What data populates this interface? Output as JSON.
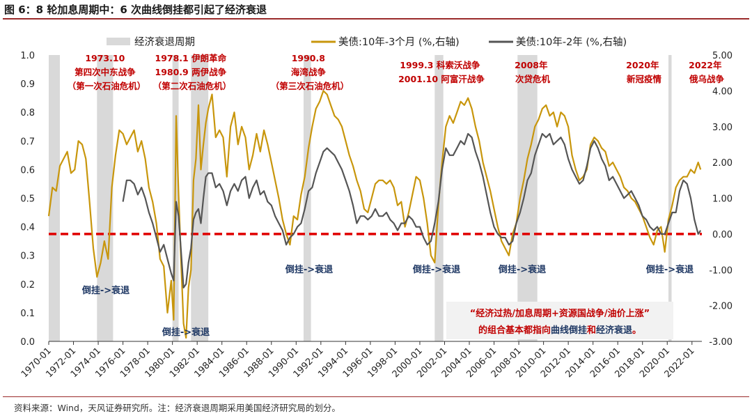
{
  "title": "图 6：8 轮加息周期中：6 次曲线倒挂都引起了经济衰退",
  "footer": "资料来源：Wind，天风证券研究所。注：经济衰退周期采用美国经济研究局的划分。",
  "colors": {
    "gold": "#c8960c",
    "gray": "#555555",
    "recession": "#d9d9d9",
    "red": "#e00000",
    "annot": "#c00000",
    "navy": "#1f3864"
  },
  "chart_data": {
    "type": "line",
    "title": "8 轮加息周期中：6 次曲线倒挂都引起了经济衰退",
    "x_range": [
      1970.0,
      2022.8
    ],
    "left_axis": {
      "ylim": [
        0.0,
        1.0
      ],
      "ticks": [
        "0.0",
        "0.1",
        "0.2",
        "0.3",
        "0.4",
        "0.5",
        "0.6",
        "0.7",
        "0.8",
        "0.9",
        "1.0"
      ]
    },
    "right_axis": {
      "ylim": [
        -3.0,
        5.0
      ],
      "ticks": [
        "-3.00",
        "-2.00",
        "-1.00",
        "0.00",
        "1.00",
        "2.00",
        "3.00",
        "4.00",
        "5.00"
      ]
    },
    "x_ticks": [
      "1970-01",
      "1972-01",
      "1974-01",
      "1976-01",
      "1978-01",
      "1980-01",
      "1982-01",
      "1984-01",
      "1986-01",
      "1988-01",
      "1990-01",
      "1992-01",
      "1994-01",
      "1996-01",
      "1998-01",
      "2000-01",
      "2002-01",
      "2004-01",
      "2006-01",
      "2008-01",
      "2010-01",
      "2012-01",
      "2014-01",
      "2016-01",
      "2018-01",
      "2020-01",
      "2022-01"
    ],
    "legend": [
      "经济衰退周期",
      "美债:10年-3个月 (%,右轴)",
      "美债:10年-2年 (%,右轴)"
    ],
    "recessions": [
      [
        1970.0,
        1970.9
      ],
      [
        1973.9,
        1975.2
      ],
      [
        1980.0,
        1980.5
      ],
      [
        1981.5,
        1982.9
      ],
      [
        1990.6,
        1991.2
      ],
      [
        2001.2,
        2001.9
      ],
      [
        2007.9,
        2009.5
      ],
      [
        2020.1,
        2020.35
      ]
    ],
    "reference_line": {
      "axis": "right",
      "value": 0.0,
      "style": "dashed"
    },
    "series": [
      {
        "name": "美债:10年-3个月 (%,右轴)",
        "axis": "right",
        "x": [
          1970.0,
          1970.3,
          1970.6,
          1970.9,
          1971.2,
          1971.5,
          1971.8,
          1972.1,
          1972.4,
          1972.7,
          1973.0,
          1973.3,
          1973.6,
          1973.9,
          1974.2,
          1974.5,
          1974.8,
          1975.1,
          1975.4,
          1975.7,
          1976.0,
          1976.3,
          1976.6,
          1976.9,
          1977.2,
          1977.5,
          1977.8,
          1978.1,
          1978.4,
          1978.7,
          1979.0,
          1979.3,
          1979.6,
          1979.9,
          1980.1,
          1980.3,
          1980.5,
          1980.7,
          1980.9,
          1981.1,
          1981.3,
          1981.5,
          1981.7,
          1981.9,
          1982.1,
          1982.3,
          1982.5,
          1982.7,
          1982.9,
          1983.2,
          1983.5,
          1983.8,
          1984.1,
          1984.4,
          1984.7,
          1985.0,
          1985.3,
          1985.6,
          1985.9,
          1986.2,
          1986.5,
          1986.8,
          1987.1,
          1987.4,
          1987.7,
          1988.0,
          1988.3,
          1988.6,
          1988.9,
          1989.2,
          1989.5,
          1989.8,
          1990.1,
          1990.4,
          1990.7,
          1991.0,
          1991.3,
          1991.6,
          1991.9,
          1992.2,
          1992.5,
          1992.8,
          1993.1,
          1993.4,
          1993.7,
          1994.0,
          1994.3,
          1994.6,
          1994.9,
          1995.2,
          1995.5,
          1995.8,
          1996.1,
          1996.4,
          1996.7,
          1997.0,
          1997.3,
          1997.6,
          1997.9,
          1998.2,
          1998.5,
          1998.8,
          1999.1,
          1999.4,
          1999.7,
          2000.0,
          2000.3,
          2000.6,
          2000.9,
          2001.2,
          2001.5,
          2001.8,
          2002.1,
          2002.4,
          2002.7,
          2003.0,
          2003.3,
          2003.6,
          2003.9,
          2004.2,
          2004.5,
          2004.8,
          2005.1,
          2005.4,
          2005.7,
          2006.0,
          2006.3,
          2006.6,
          2006.9,
          2007.2,
          2007.5,
          2007.8,
          2008.1,
          2008.4,
          2008.7,
          2009.0,
          2009.3,
          2009.6,
          2009.9,
          2010.2,
          2010.5,
          2010.8,
          2011.1,
          2011.4,
          2011.7,
          2012.0,
          2012.3,
          2012.6,
          2012.9,
          2013.2,
          2013.5,
          2013.8,
          2014.1,
          2014.4,
          2014.7,
          2015.0,
          2015.3,
          2015.6,
          2015.9,
          2016.2,
          2016.5,
          2016.8,
          2017.1,
          2017.4,
          2017.7,
          2018.0,
          2018.3,
          2018.6,
          2018.9,
          2019.2,
          2019.5,
          2019.8,
          2020.1,
          2020.4,
          2020.7,
          2021.0,
          2021.3,
          2021.6,
          2021.9,
          2022.2,
          2022.5,
          2022.7
        ],
        "y": [
          0.5,
          1.3,
          1.2,
          1.9,
          2.1,
          2.3,
          1.7,
          1.8,
          2.6,
          2.5,
          2.1,
          0.9,
          -0.4,
          -1.2,
          -0.8,
          -0.2,
          -0.7,
          1.3,
          2.2,
          2.9,
          2.8,
          2.5,
          2.7,
          2.9,
          2.3,
          2.6,
          2.1,
          1.3,
          0.9,
          0.3,
          -0.7,
          -0.9,
          -2.2,
          -1.3,
          -2.4,
          3.3,
          1.1,
          -0.8,
          -2.5,
          -2.9,
          -1.5,
          -1.0,
          1.5,
          2.1,
          3.6,
          1.8,
          2.5,
          3.1,
          3.5,
          3.9,
          2.7,
          2.9,
          2.7,
          1.6,
          3.0,
          3.4,
          2.5,
          3.0,
          2.7,
          1.8,
          2.2,
          2.8,
          2.3,
          2.9,
          2.5,
          2.0,
          1.5,
          1.0,
          0.4,
          0.0,
          -0.3,
          0.5,
          0.4,
          1.1,
          1.6,
          2.4,
          3.0,
          3.5,
          3.7,
          4.0,
          3.9,
          3.6,
          3.3,
          3.2,
          3.0,
          2.6,
          2.2,
          1.9,
          1.5,
          1.2,
          0.7,
          0.6,
          1.0,
          1.4,
          1.5,
          1.5,
          1.4,
          1.5,
          1.3,
          0.8,
          0.9,
          0.2,
          0.6,
          1.1,
          1.6,
          1.5,
          1.0,
          0.3,
          -0.6,
          -0.8,
          0.8,
          2.0,
          3.0,
          3.3,
          3.1,
          3.4,
          3.7,
          3.6,
          3.8,
          3.5,
          3.0,
          2.6,
          2.0,
          1.6,
          1.2,
          0.7,
          0.2,
          -0.2,
          -0.4,
          -0.6,
          0.0,
          0.3,
          1.0,
          1.5,
          2.1,
          2.5,
          3.0,
          3.2,
          3.5,
          3.6,
          3.3,
          3.4,
          3.0,
          3.4,
          3.3,
          3.0,
          2.2,
          1.8,
          1.5,
          1.6,
          1.8,
          2.5,
          2.7,
          2.6,
          2.4,
          2.3,
          1.9,
          2.0,
          1.8,
          1.6,
          1.3,
          1.2,
          1.0,
          0.9,
          0.7,
          0.5,
          0.2,
          -0.1,
          -0.3,
          0.1,
          0.2,
          -0.5,
          0.4,
          0.8,
          1.3,
          1.5,
          1.6,
          1.6,
          1.8,
          1.7,
          2.0,
          1.8
        ]
      },
      {
        "name": "美债:10年-2年 (%,右轴)",
        "axis": "right",
        "x": [
          1976.0,
          1976.3,
          1976.6,
          1976.9,
          1977.2,
          1977.5,
          1977.8,
          1978.1,
          1978.4,
          1978.7,
          1979.0,
          1979.3,
          1979.6,
          1979.9,
          1980.1,
          1980.3,
          1980.5,
          1980.7,
          1980.9,
          1981.1,
          1981.3,
          1981.5,
          1981.7,
          1981.9,
          1982.1,
          1982.3,
          1982.5,
          1982.7,
          1982.9,
          1983.2,
          1983.5,
          1983.8,
          1984.1,
          1984.4,
          1984.7,
          1985.0,
          1985.3,
          1985.6,
          1985.9,
          1986.2,
          1986.5,
          1986.8,
          1987.1,
          1987.4,
          1987.7,
          1988.0,
          1988.3,
          1988.6,
          1988.9,
          1989.2,
          1989.5,
          1989.8,
          1990.1,
          1990.4,
          1990.7,
          1991.0,
          1991.3,
          1991.6,
          1991.9,
          1992.2,
          1992.5,
          1992.8,
          1993.1,
          1993.4,
          1993.7,
          1994.0,
          1994.3,
          1994.6,
          1994.9,
          1995.2,
          1995.5,
          1995.8,
          1996.1,
          1996.4,
          1996.7,
          1997.0,
          1997.3,
          1997.6,
          1997.9,
          1998.2,
          1998.5,
          1998.8,
          1999.1,
          1999.4,
          1999.7,
          2000.0,
          2000.3,
          2000.6,
          2000.9,
          2001.2,
          2001.5,
          2001.8,
          2002.1,
          2002.4,
          2002.7,
          2003.0,
          2003.3,
          2003.6,
          2003.9,
          2004.2,
          2004.5,
          2004.8,
          2005.1,
          2005.4,
          2005.7,
          2006.0,
          2006.3,
          2006.6,
          2006.9,
          2007.2,
          2007.5,
          2007.8,
          2008.1,
          2008.4,
          2008.7,
          2009.0,
          2009.3,
          2009.6,
          2009.9,
          2010.2,
          2010.5,
          2010.8,
          2011.1,
          2011.4,
          2011.7,
          2012.0,
          2012.3,
          2012.6,
          2012.9,
          2013.2,
          2013.5,
          2013.8,
          2014.1,
          2014.4,
          2014.7,
          2015.0,
          2015.3,
          2015.6,
          2015.9,
          2016.2,
          2016.5,
          2016.8,
          2017.1,
          2017.4,
          2017.7,
          2018.0,
          2018.3,
          2018.6,
          2018.9,
          2019.2,
          2019.5,
          2019.8,
          2020.1,
          2020.4,
          2020.7,
          2021.0,
          2021.3,
          2021.6,
          2021.9,
          2022.2,
          2022.5,
          2022.7
        ],
        "y": [
          0.9,
          1.5,
          1.5,
          1.4,
          1.1,
          1.3,
          1.0,
          0.6,
          0.3,
          -0.1,
          -0.5,
          -0.3,
          -0.7,
          -1.1,
          -1.3,
          0.9,
          0.5,
          -0.5,
          -1.5,
          -1.4,
          -0.8,
          -0.4,
          0.4,
          0.6,
          0.7,
          0.3,
          1.0,
          1.6,
          1.7,
          1.7,
          1.3,
          1.4,
          1.2,
          0.8,
          1.2,
          1.4,
          1.2,
          1.5,
          1.6,
          1.0,
          1.3,
          1.5,
          1.1,
          1.2,
          0.9,
          0.8,
          0.5,
          0.3,
          0.1,
          -0.3,
          -0.1,
          0.0,
          0.2,
          0.3,
          0.7,
          1.2,
          1.3,
          1.7,
          2.0,
          2.3,
          2.4,
          2.3,
          2.2,
          2.0,
          1.8,
          1.5,
          1.2,
          0.8,
          0.3,
          0.5,
          0.5,
          0.4,
          0.5,
          0.7,
          0.5,
          0.5,
          0.6,
          0.4,
          0.3,
          0.1,
          0.3,
          0.3,
          0.5,
          0.4,
          0.2,
          0.2,
          -0.1,
          -0.3,
          -0.2,
          0.3,
          0.9,
          1.8,
          2.4,
          2.2,
          2.2,
          2.4,
          2.6,
          2.5,
          2.8,
          2.7,
          2.3,
          2.0,
          1.6,
          1.1,
          0.6,
          0.2,
          0.0,
          -0.1,
          -0.1,
          -0.3,
          -0.2,
          0.3,
          0.6,
          1.0,
          1.5,
          1.7,
          2.2,
          2.5,
          2.8,
          2.7,
          2.8,
          2.5,
          2.6,
          2.7,
          2.5,
          2.1,
          1.8,
          1.6,
          1.4,
          1.5,
          1.9,
          2.4,
          2.6,
          2.4,
          2.1,
          1.9,
          1.5,
          1.6,
          1.4,
          1.2,
          1.0,
          1.1,
          1.2,
          1.0,
          0.8,
          0.5,
          0.4,
          0.2,
          0.1,
          0.2,
          0.0,
          0.0,
          0.3,
          0.6,
          0.6,
          1.2,
          1.5,
          1.4,
          1.0,
          0.4,
          0.0,
          0.1
        ]
      }
    ],
    "event_annotations": [
      {
        "lines": [
          "1973.10",
          "第四次中东战争",
          "（第一次石油危机）"
        ]
      },
      {
        "lines": [
          "1978.1 伊朗革命",
          "1980.9 两伊战争",
          "（第二次石油危机）"
        ]
      },
      {
        "lines": [
          "1990.8",
          "海湾战争",
          "（第三次石油危机）"
        ]
      },
      {
        "lines": [
          "1999.3 科索沃战争",
          "2001.10 阿富汗战争"
        ]
      },
      {
        "lines": [
          "2008年",
          "次贷危机"
        ]
      },
      {
        "lines": [
          "2020年",
          "新冠疫情"
        ]
      },
      {
        "lines": [
          "2022年",
          "俄乌战争"
        ]
      }
    ],
    "inversion_labels": [
      "倒挂->衰退",
      "倒挂->衰退",
      "倒挂->衰退",
      "倒挂->衰退",
      "倒挂->衰退",
      "倒挂->衰退"
    ],
    "callout": {
      "line1": "“经济过热/加息周期+资源国战争/油价上涨”",
      "line2_a": "的组合基本都指向",
      "line2_b": "曲线倒挂",
      "line2_c": "和",
      "line2_d": "经济衰退",
      "line2_e": "。"
    }
  }
}
